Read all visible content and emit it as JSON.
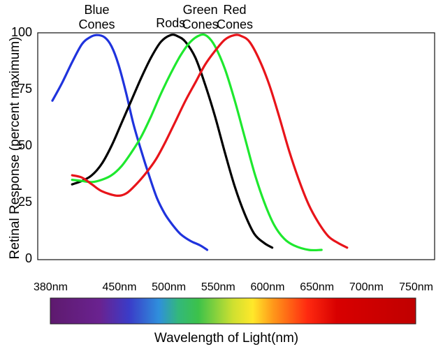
{
  "chart_data": {
    "type": "line",
    "title": "",
    "xlabel": "Wavelength of Light(nm)",
    "ylabel": "Retinal Response (percent maximum)",
    "xlim": [
      380,
      750
    ],
    "ylim": [
      0,
      100
    ],
    "y_ticks": [
      "0",
      "25",
      "50",
      "75",
      "100"
    ],
    "x_ticks": [
      {
        "value": 380,
        "label": "380nm"
      },
      {
        "value": 450,
        "label": "450nm"
      },
      {
        "value": 500,
        "label": "500nm"
      },
      {
        "value": 550,
        "label": "550nm"
      },
      {
        "value": 600,
        "label": "600nm"
      },
      {
        "value": 650,
        "label": "650nm"
      },
      {
        "value": 700,
        "label": "700nm"
      },
      {
        "value": 750,
        "label": "750nm"
      }
    ],
    "spectrum_colors": [
      {
        "value": 380,
        "color": "#5e1a6e"
      },
      {
        "value": 430,
        "color": "#6a2290"
      },
      {
        "value": 460,
        "color": "#3a3cc8"
      },
      {
        "value": 490,
        "color": "#2f8fdc"
      },
      {
        "value": 510,
        "color": "#33b87a"
      },
      {
        "value": 530,
        "color": "#3cc24a"
      },
      {
        "value": 565,
        "color": "#cfe030"
      },
      {
        "value": 585,
        "color": "#ffe82a"
      },
      {
        "value": 605,
        "color": "#ff9a1a"
      },
      {
        "value": 640,
        "color": "#ff2a10"
      },
      {
        "value": 670,
        "color": "#d80000"
      },
      {
        "value": 750,
        "color": "#c00000"
      }
    ],
    "series": [
      {
        "name": "Blue Cones",
        "label_lines": [
          "Blue",
          "Cones"
        ],
        "color": "#1f33dd",
        "points": [
          [
            380,
            70
          ],
          [
            390,
            78
          ],
          [
            400,
            87
          ],
          [
            410,
            95
          ],
          [
            418,
            98
          ],
          [
            425,
            99
          ],
          [
            433,
            98
          ],
          [
            440,
            94
          ],
          [
            447,
            86
          ],
          [
            455,
            73
          ],
          [
            462,
            60
          ],
          [
            470,
            48
          ],
          [
            478,
            37
          ],
          [
            486,
            27
          ],
          [
            494,
            20
          ],
          [
            502,
            15
          ],
          [
            510,
            11
          ],
          [
            520,
            8
          ],
          [
            530,
            6
          ],
          [
            537,
            4
          ]
        ]
      },
      {
        "name": "Rods",
        "label_lines": [
          "Rods"
        ],
        "color": "#000000",
        "points": [
          [
            400,
            33
          ],
          [
            410,
            34.5
          ],
          [
            420,
            37
          ],
          [
            430,
            42
          ],
          [
            440,
            50
          ],
          [
            450,
            60
          ],
          [
            460,
            70
          ],
          [
            470,
            80
          ],
          [
            480,
            89
          ],
          [
            490,
            96
          ],
          [
            500,
            99
          ],
          [
            507,
            98.5
          ],
          [
            515,
            96
          ],
          [
            525,
            89
          ],
          [
            535,
            77
          ],
          [
            545,
            63
          ],
          [
            555,
            47
          ],
          [
            565,
            32
          ],
          [
            575,
            20
          ],
          [
            585,
            11
          ],
          [
            595,
            7
          ],
          [
            603,
            5
          ]
        ]
      },
      {
        "name": "Green Cones",
        "label_lines": [
          "Green",
          "Cones"
        ],
        "color": "#1ee82e",
        "points": [
          [
            400,
            35
          ],
          [
            410,
            34.5
          ],
          [
            420,
            34
          ],
          [
            430,
            35
          ],
          [
            440,
            37
          ],
          [
            450,
            41
          ],
          [
            460,
            47
          ],
          [
            470,
            54
          ],
          [
            480,
            63
          ],
          [
            490,
            73
          ],
          [
            500,
            82
          ],
          [
            510,
            90
          ],
          [
            520,
            96
          ],
          [
            530,
            99
          ],
          [
            537,
            98.5
          ],
          [
            545,
            94
          ],
          [
            555,
            84
          ],
          [
            565,
            70
          ],
          [
            575,
            54
          ],
          [
            585,
            38
          ],
          [
            595,
            25
          ],
          [
            605,
            15
          ],
          [
            615,
            9
          ],
          [
            625,
            6
          ],
          [
            640,
            4
          ],
          [
            653,
            4
          ]
        ]
      },
      {
        "name": "Red Cones",
        "label_lines": [
          "Red",
          "Cones"
        ],
        "color": "#e8141a",
        "points": [
          [
            400,
            37
          ],
          [
            410,
            36
          ],
          [
            420,
            33
          ],
          [
            430,
            30
          ],
          [
            445,
            28
          ],
          [
            455,
            29
          ],
          [
            465,
            33
          ],
          [
            475,
            38
          ],
          [
            485,
            44
          ],
          [
            495,
            52
          ],
          [
            505,
            61
          ],
          [
            515,
            70
          ],
          [
            525,
            78
          ],
          [
            535,
            86
          ],
          [
            545,
            92
          ],
          [
            555,
            97
          ],
          [
            565,
            99
          ],
          [
            572,
            98.5
          ],
          [
            580,
            96
          ],
          [
            590,
            88
          ],
          [
            600,
            77
          ],
          [
            610,
            63
          ],
          [
            620,
            48
          ],
          [
            630,
            35
          ],
          [
            640,
            24
          ],
          [
            650,
            16
          ],
          [
            660,
            10
          ],
          [
            670,
            7
          ],
          [
            679,
            5
          ]
        ]
      }
    ]
  }
}
